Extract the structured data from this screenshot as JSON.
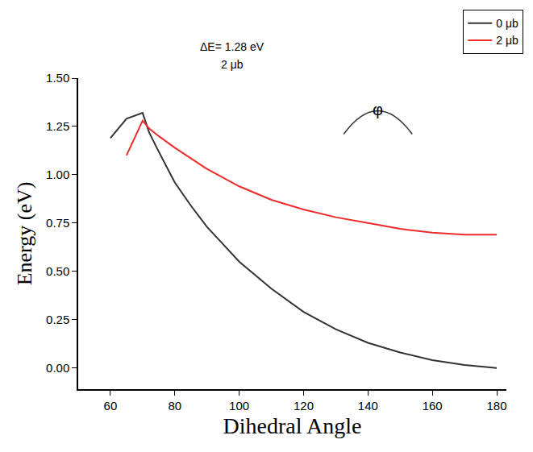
{
  "chart_data": {
    "type": "line",
    "x_label": "Dihedral Angle",
    "y_label": "Energy (eV)",
    "annotations": [
      "ΔE= 1.28 eV",
      "2 μb",
      "φ"
    ],
    "series": [
      {
        "name": "0 μb",
        "color": "#333333",
        "x": [
          60,
          65,
          70,
          72,
          75,
          80,
          85,
          90,
          95,
          100,
          110,
          120,
          130,
          140,
          150,
          160,
          170,
          180
        ],
        "values": [
          1.19,
          1.29,
          1.32,
          1.22,
          1.12,
          0.96,
          0.84,
          0.73,
          0.64,
          0.55,
          0.41,
          0.29,
          0.2,
          0.13,
          0.08,
          0.04,
          0.015,
          0.0
        ]
      },
      {
        "name": "2 μb",
        "color": "#ee2a2a",
        "x": [
          65,
          70,
          72,
          75,
          80,
          90,
          100,
          110,
          120,
          130,
          140,
          150,
          160,
          170,
          180
        ],
        "values": [
          1.1,
          1.28,
          1.24,
          1.2,
          1.14,
          1.03,
          0.94,
          0.87,
          0.82,
          0.78,
          0.75,
          0.72,
          0.7,
          0.69,
          0.69
        ]
      }
    ],
    "xlim": [
      50,
      183
    ],
    "xticks": [
      60,
      80,
      100,
      120,
      140,
      160,
      180
    ],
    "ylim": [
      -0.11,
      1.5
    ],
    "yticks": [
      {
        "value": 0,
        "label": "0.00"
      },
      0.25,
      {
        "value": 0.5,
        "label": "0.50"
      },
      0.75,
      {
        "value": 1,
        "label": "1.00"
      },
      1.25,
      {
        "value": 1.5,
        "label": "1.50"
      }
    ],
    "grid": false,
    "legend": "top right"
  }
}
